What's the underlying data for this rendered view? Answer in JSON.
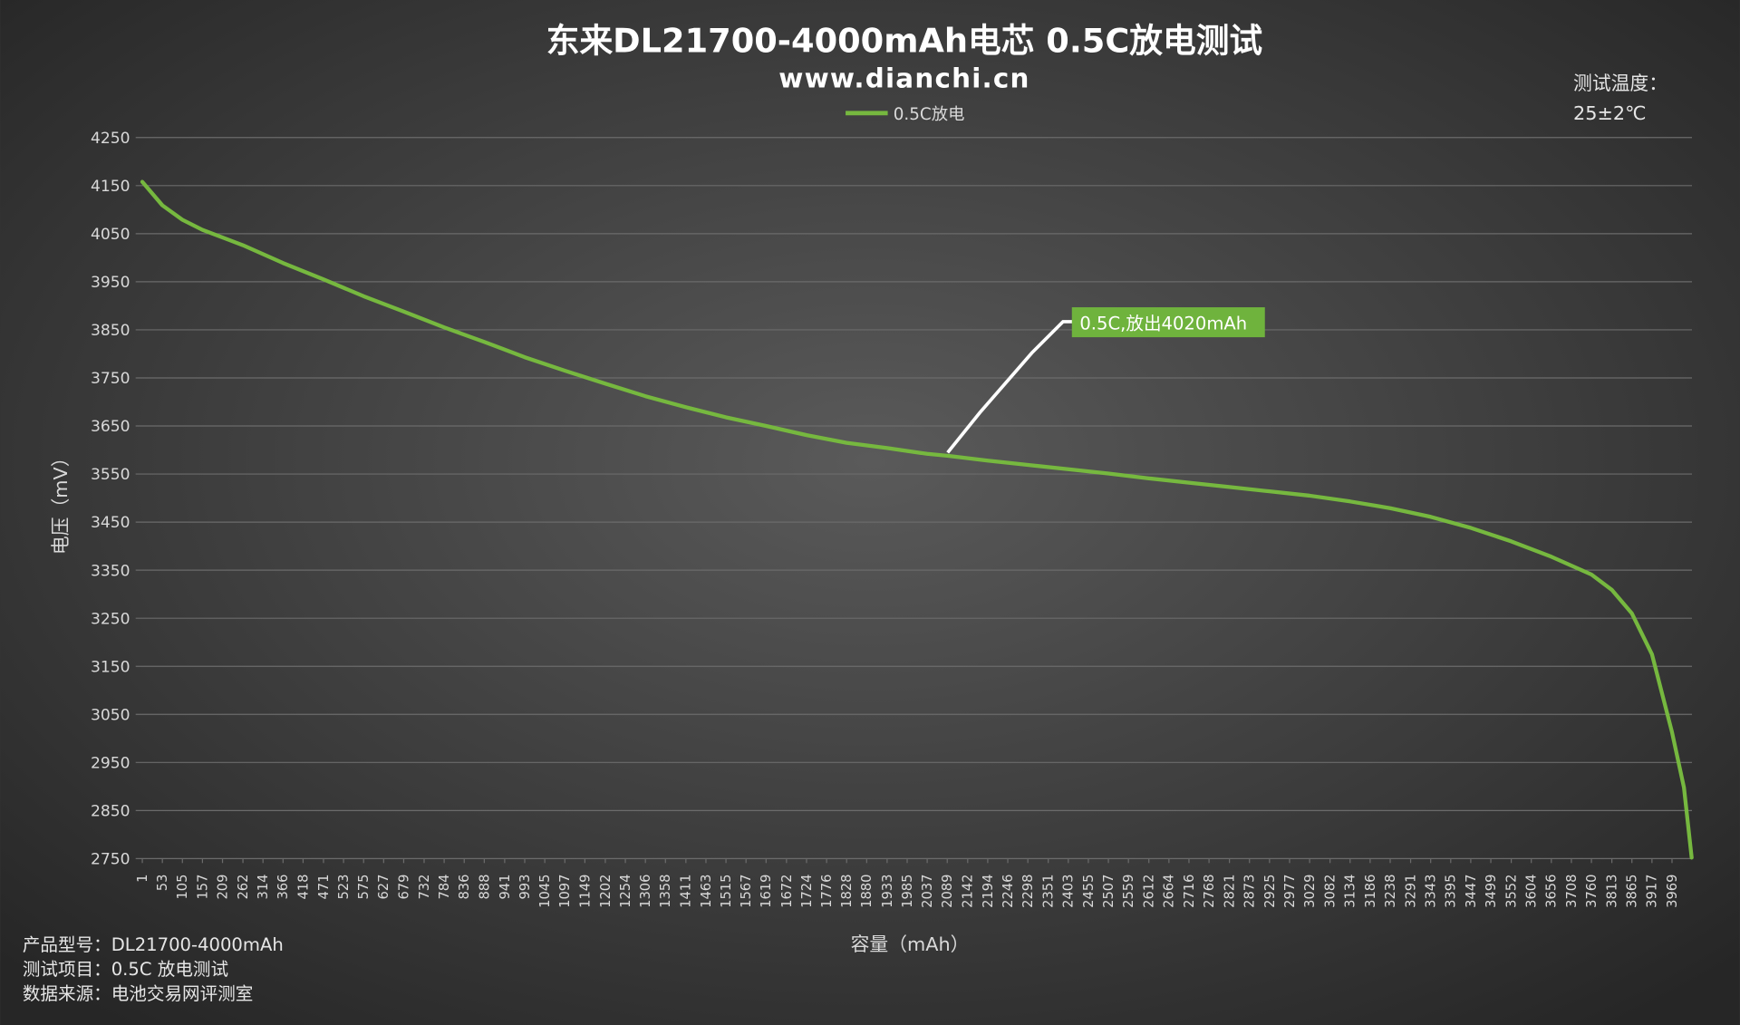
{
  "chart_data": {
    "type": "line",
    "title": "东来DL21700-4000mAh电芯 0.5C放电测试",
    "subtitle": "www.dianchi.cn",
    "note": [
      "测试温度：",
      "25±2℃"
    ],
    "xlabel": "容量（mAh）",
    "ylabel": "电压（mV）",
    "annotation": "0.5C,放出4020mAh",
    "footer": [
      "产品型号：DL21700-4000mAh",
      "测试项目：0.5C 放电测试",
      "数据来源：电池交易网评测室"
    ],
    "x": [
      1,
      53,
      105,
      157,
      262,
      366,
      471,
      575,
      679,
      784,
      888,
      993,
      1097,
      1202,
      1306,
      1411,
      1515,
      1619,
      1724,
      1828,
      1933,
      2037,
      2089,
      2194,
      2298,
      2403,
      2507,
      2612,
      2716,
      2821,
      2925,
      3029,
      3134,
      3238,
      3343,
      3447,
      3552,
      3656,
      3760,
      3813,
      3865,
      3917,
      3969,
      4000,
      4020
    ],
    "series": [
      {
        "name": "0.5C放电",
        "color": "#76b83f",
        "values": [
          4158,
          4109,
          4079,
          4058,
          4026,
          3989,
          3955,
          3920,
          3888,
          3855,
          3825,
          3793,
          3765,
          3738,
          3712,
          3689,
          3668,
          3650,
          3631,
          3615,
          3604,
          3592,
          3588,
          3578,
          3569,
          3560,
          3551,
          3541,
          3532,
          3523,
          3514,
          3505,
          3493,
          3479,
          3461,
          3438,
          3410,
          3378,
          3341,
          3309,
          3260,
          3175,
          3013,
          2898,
          2752
        ]
      }
    ],
    "xlim": [
      1,
      4020
    ],
    "xticks": [
      1,
      53,
      105,
      157,
      209,
      262,
      314,
      366,
      418,
      471,
      523,
      575,
      627,
      679,
      732,
      784,
      836,
      888,
      941,
      993,
      1045,
      1097,
      1149,
      1202,
      1254,
      1306,
      1358,
      1411,
      1463,
      1515,
      1567,
      1619,
      1672,
      1724,
      1776,
      1828,
      1880,
      1933,
      1985,
      2037,
      2089,
      2142,
      2194,
      2246,
      2298,
      2351,
      2403,
      2455,
      2507,
      2559,
      2612,
      2664,
      2716,
      2768,
      2821,
      2873,
      2925,
      2977,
      3029,
      3082,
      3134,
      3186,
      3238,
      3291,
      3343,
      3395,
      3447,
      3499,
      3552,
      3604,
      3656,
      3708,
      3760,
      3813,
      3865,
      3917,
      3969
    ],
    "ylim": [
      2750,
      4250
    ],
    "yticks": [
      2750,
      2850,
      2950,
      3050,
      3150,
      3250,
      3350,
      3450,
      3550,
      3650,
      3750,
      3850,
      3950,
      4050,
      4150,
      4250
    ],
    "grid": true
  }
}
